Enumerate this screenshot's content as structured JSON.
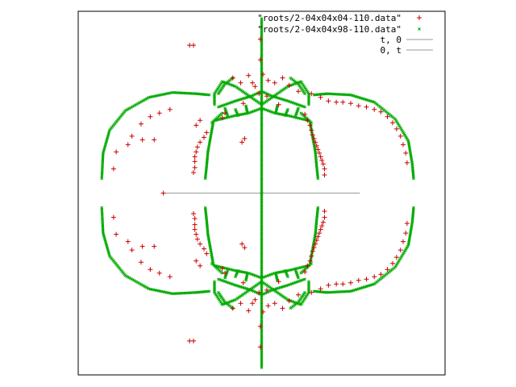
{
  "chart_data": {
    "type": "scatter",
    "title": "",
    "xlabel": "",
    "ylabel": "",
    "grid": false,
    "legend_position": "top-right",
    "xlim": [
      -1.4,
      1.4
    ],
    "ylim": [
      -1.5,
      1.5
    ],
    "series": [
      {
        "name": "\"roots/2-04x04x04-110.data\"",
        "marker": "+",
        "color": "#cc0000",
        "points": [
          [
            -0.55,
            1.22
          ],
          [
            -0.52,
            1.22
          ],
          [
            -0.01,
            1.27
          ],
          [
            -0.01,
            1.1
          ],
          [
            0.01,
            0.98
          ],
          [
            -0.22,
            0.95
          ],
          [
            -0.16,
            0.91
          ],
          [
            -0.1,
            0.97
          ],
          [
            -0.07,
            0.91
          ],
          [
            0.05,
            0.93
          ],
          [
            0.1,
            0.91
          ],
          [
            0.16,
            0.95
          ],
          [
            0.21,
            0.89
          ],
          [
            -0.02,
            0.82
          ],
          [
            0.04,
            0.8
          ],
          [
            -0.14,
            0.74
          ],
          [
            0.13,
            0.73
          ],
          [
            0.45,
            0.79
          ],
          [
            0.51,
            0.76
          ],
          [
            0.57,
            0.75
          ],
          [
            0.62,
            0.75
          ],
          [
            0.68,
            0.74
          ],
          [
            0.74,
            0.72
          ],
          [
            0.8,
            0.71
          ],
          [
            0.86,
            0.69
          ],
          [
            0.91,
            0.67
          ],
          [
            0.96,
            0.63
          ],
          [
            1.0,
            0.58
          ],
          [
            1.03,
            0.53
          ],
          [
            1.06,
            0.47
          ],
          [
            1.08,
            0.4
          ],
          [
            1.1,
            0.33
          ],
          [
            1.11,
            0.25
          ],
          [
            0.33,
            0.65
          ],
          [
            0.35,
            0.6
          ],
          [
            0.37,
            0.56
          ],
          [
            0.38,
            0.52
          ],
          [
            0.39,
            0.48
          ],
          [
            0.4,
            0.45
          ],
          [
            0.41,
            0.42
          ],
          [
            0.42,
            0.39
          ],
          [
            0.43,
            0.36
          ],
          [
            0.44,
            0.33
          ],
          [
            0.45,
            0.3
          ],
          [
            0.46,
            0.27
          ],
          [
            0.47,
            0.24
          ],
          [
            0.48,
            0.2
          ],
          [
            0.48,
            0.15
          ],
          [
            0.38,
            0.82
          ],
          [
            0.28,
            0.84
          ],
          [
            -0.05,
            0.88
          ],
          [
            -0.28,
            0.66
          ],
          [
            -0.3,
            0.62
          ],
          [
            -0.42,
            0.5
          ],
          [
            -0.44,
            0.46
          ],
          [
            -0.47,
            0.42
          ],
          [
            -0.49,
            0.38
          ],
          [
            -0.5,
            0.34
          ],
          [
            -0.51,
            0.3
          ],
          [
            -0.51,
            0.26
          ],
          [
            -0.51,
            0.21
          ],
          [
            -0.52,
            0.17
          ],
          [
            -0.5,
            0.56
          ],
          [
            -0.47,
            0.6
          ],
          [
            -0.7,
            0.69
          ],
          [
            -0.78,
            0.66
          ],
          [
            -0.85,
            0.63
          ],
          [
            -0.92,
            0.57
          ],
          [
            -0.99,
            0.47
          ],
          [
            -1.02,
            0.4
          ],
          [
            -0.91,
            0.44
          ],
          [
            -0.82,
            0.44
          ],
          [
            -1.11,
            0.34
          ],
          [
            -1.13,
            0.2
          ],
          [
            -0.15,
            0.42
          ],
          [
            -0.13,
            0.45
          ],
          [
            -0.75,
            0.0
          ]
        ],
        "symmetric_about_x_axis": true
      },
      {
        "name": "\"roots/2-04x04x98-110.data\"",
        "marker": "x",
        "color": "#00aa00",
        "curves": [
          [
            [
              -1.22,
              0.12
            ],
            [
              -1.21,
              0.33
            ],
            [
              -1.16,
              0.52
            ],
            [
              -1.04,
              0.68
            ],
            [
              -0.86,
              0.79
            ],
            [
              -0.68,
              0.83
            ],
            [
              -0.5,
              0.82
            ],
            [
              -0.4,
              0.81
            ]
          ],
          [
            [
              0.4,
              0.81
            ],
            [
              0.5,
              0.82
            ],
            [
              0.68,
              0.81
            ],
            [
              0.86,
              0.75
            ],
            [
              1.02,
              0.61
            ],
            [
              1.12,
              0.43
            ],
            [
              1.15,
              0.24
            ],
            [
              1.16,
              0.12
            ]
          ],
          [
            [
              -0.37,
              0.58
            ],
            [
              -0.39,
              0.46
            ],
            [
              -0.41,
              0.34
            ],
            [
              -0.42,
              0.22
            ],
            [
              -0.43,
              0.12
            ]
          ],
          [
            [
              0.37,
              0.58
            ],
            [
              0.39,
              0.46
            ],
            [
              0.41,
              0.34
            ],
            [
              0.42,
              0.22
            ],
            [
              0.43,
              0.12
            ]
          ],
          [
            [
              -0.35,
              0.6
            ],
            [
              -0.2,
              0.64
            ],
            [
              -0.1,
              0.66
            ],
            [
              0.0,
              0.7
            ],
            [
              0.1,
              0.66
            ],
            [
              0.2,
              0.64
            ],
            [
              0.35,
              0.6
            ]
          ],
          [
            [
              -0.3,
              0.92
            ],
            [
              -0.2,
              0.88
            ],
            [
              -0.08,
              0.79
            ],
            [
              0.0,
              0.73
            ],
            [
              0.08,
              0.79
            ],
            [
              0.2,
              0.88
            ],
            [
              0.3,
              0.92
            ]
          ],
          [
            [
              -0.33,
              0.71
            ],
            [
              -0.2,
              0.76
            ],
            [
              -0.08,
              0.8
            ],
            [
              0.0,
              0.84
            ],
            [
              0.08,
              0.8
            ],
            [
              0.2,
              0.76
            ],
            [
              0.33,
              0.71
            ]
          ],
          [
            [
              -0.3,
              0.92
            ],
            [
              -0.36,
              0.82
            ],
            [
              -0.36,
              0.73
            ]
          ],
          [
            [
              0.3,
              0.92
            ],
            [
              0.36,
              0.82
            ],
            [
              0.36,
              0.73
            ]
          ],
          [
            [
              -0.38,
              0.58
            ],
            [
              -0.33,
              0.63
            ],
            [
              -0.3,
              0.66
            ]
          ],
          [
            [
              0.38,
              0.58
            ],
            [
              0.33,
              0.63
            ],
            [
              0.3,
              0.66
            ]
          ],
          [
            [
              0.0,
              1.44
            ],
            [
              0.0,
              0.0
            ]
          ],
          [
            [
              -0.33,
              0.82
            ],
            [
              -0.28,
              0.9
            ],
            [
              -0.22,
              0.95
            ]
          ],
          [
            [
              0.33,
              0.82
            ],
            [
              0.28,
              0.9
            ],
            [
              0.22,
              0.95
            ]
          ],
          [
            [
              -0.2,
              0.69
            ],
            [
              -0.18,
              0.64
            ]
          ],
          [
            [
              0.2,
              0.69
            ],
            [
              0.18,
              0.64
            ]
          ],
          [
            [
              -0.12,
              0.72
            ],
            [
              -0.11,
              0.67
            ]
          ],
          [
            [
              0.12,
              0.72
            ],
            [
              0.11,
              0.67
            ]
          ],
          [
            [
              -0.28,
              0.7
            ],
            [
              -0.26,
              0.64
            ]
          ],
          [
            [
              0.28,
              0.7
            ],
            [
              0.26,
              0.64
            ]
          ]
        ],
        "symmetric_about_x_axis": true
      },
      {
        "name": "t, 0",
        "style": "line",
        "color": "#999999",
        "points": [
          [
            -0.75,
            0.0
          ],
          [
            0.75,
            0.0
          ]
        ]
      },
      {
        "name": "0, t",
        "style": "line",
        "color": "#999999",
        "points": [
          [
            0.0,
            -1.42
          ],
          [
            0.0,
            1.42
          ]
        ]
      }
    ]
  }
}
